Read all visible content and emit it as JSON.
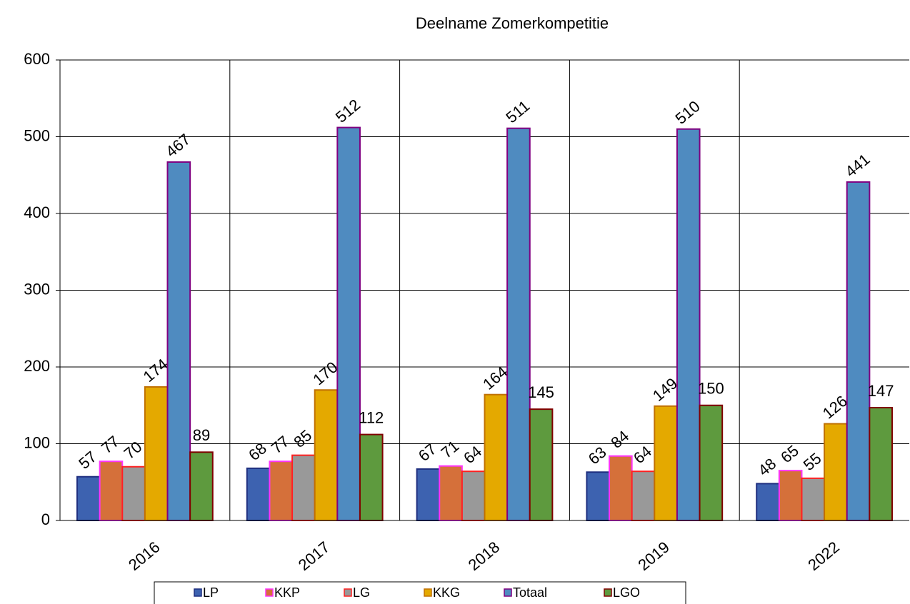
{
  "chart_data": {
    "type": "bar",
    "title": "Deelname Zomerkompetitie",
    "categories": [
      "2016",
      "2017",
      "2018",
      "2019",
      "2022"
    ],
    "series": [
      {
        "name": "LP",
        "color": "#3d62b0",
        "edgecolor": "#1f2f80",
        "values": [
          57,
          68,
          67,
          63,
          48
        ]
      },
      {
        "name": "KKP",
        "color": "#d5703a",
        "edgecolor": "#ff33ff",
        "values": [
          77,
          77,
          71,
          84,
          65
        ]
      },
      {
        "name": "LG",
        "color": "#999999",
        "edgecolor": "#ff2020",
        "values": [
          70,
          85,
          64,
          64,
          55
        ]
      },
      {
        "name": "KKG",
        "color": "#e4a900",
        "edgecolor": "#c07000",
        "values": [
          174,
          170,
          164,
          149,
          126
        ]
      },
      {
        "name": "Totaal",
        "color": "#4f8bc0",
        "edgecolor": "#800080",
        "values": [
          467,
          512,
          511,
          510,
          441
        ]
      },
      {
        "name": "LGO",
        "color": "#5e9a3e",
        "edgecolor": "#800000",
        "values": [
          89,
          112,
          145,
          150,
          147
        ]
      }
    ],
    "ylim": [
      0,
      600
    ],
    "yticks": [
      0,
      100,
      200,
      300,
      400,
      500,
      600
    ],
    "grid": true,
    "legend": "bottom"
  }
}
